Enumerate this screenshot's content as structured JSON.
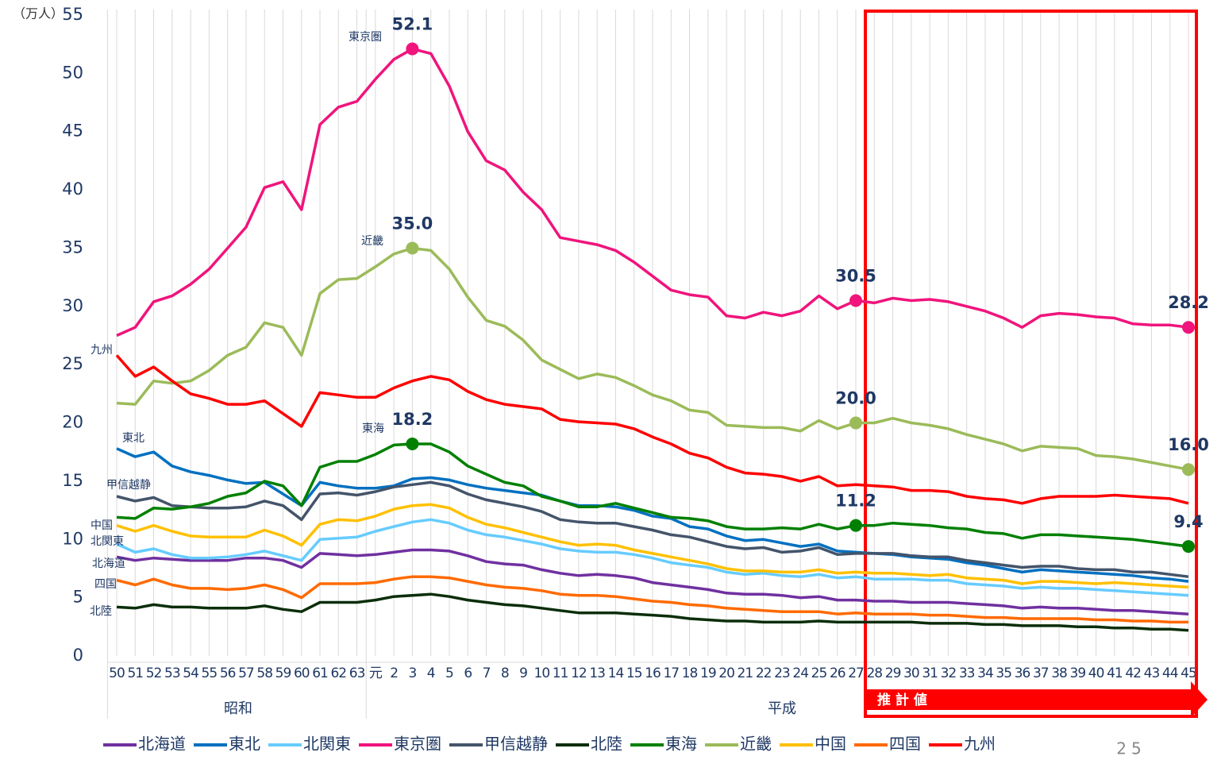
{
  "chart_data": {
    "type": "line",
    "y_axis_label": "（万人）",
    "categories": [
      "50",
      "51",
      "52",
      "53",
      "54",
      "55",
      "56",
      "57",
      "58",
      "59",
      "60",
      "61",
      "62",
      "63",
      "元",
      "2",
      "3",
      "4",
      "5",
      "6",
      "7",
      "8",
      "9",
      "10",
      "11",
      "12",
      "13",
      "14",
      "15",
      "16",
      "17",
      "18",
      "19",
      "20",
      "21",
      "22",
      "23",
      "24",
      "25",
      "26",
      "27",
      "28",
      "29",
      "30",
      "31",
      "32",
      "33",
      "34",
      "35",
      "36",
      "37",
      "38",
      "39",
      "40",
      "41",
      "42",
      "43",
      "44",
      "45"
    ],
    "groups": [
      "昭和",
      "平成"
    ],
    "forecast_label": "推 計 値",
    "ylim": [
      0,
      55
    ],
    "yticks": [
      0,
      5,
      10,
      15,
      20,
      25,
      30,
      35,
      40,
      45,
      50,
      55
    ],
    "grid": "x",
    "series": [
      {
        "name": "北海道",
        "color": "#7030a0",
        "values": [
          8.5,
          8.2,
          8.4,
          8.3,
          8.2,
          8.2,
          8.2,
          8.4,
          8.4,
          8.2,
          7.6,
          8.8,
          8.7,
          8.6,
          8.7,
          8.9,
          9.1,
          9.1,
          9.0,
          8.6,
          8.1,
          7.9,
          7.8,
          7.4,
          7.1,
          6.9,
          7.0,
          6.9,
          6.7,
          6.3,
          6.1,
          5.9,
          5.7,
          5.4,
          5.3,
          5.3,
          5.2,
          5.0,
          5.1,
          4.8,
          4.8,
          4.7,
          4.7,
          4.6,
          4.6,
          4.6,
          4.5,
          4.4,
          4.3,
          4.1,
          4.2,
          4.1,
          4.1,
          4.0,
          3.9,
          3.9,
          3.8,
          3.7,
          3.6
        ]
      },
      {
        "name": "東北",
        "color": "#0070c0",
        "values": [
          17.8,
          17.1,
          17.5,
          16.3,
          15.8,
          15.5,
          15.1,
          14.8,
          14.9,
          13.9,
          12.9,
          14.9,
          14.6,
          14.4,
          14.4,
          14.6,
          15.2,
          15.3,
          15.1,
          14.7,
          14.4,
          14.2,
          14.0,
          13.8,
          13.3,
          12.9,
          12.9,
          12.8,
          12.5,
          12.0,
          11.8,
          11.1,
          10.9,
          10.3,
          9.9,
          10.0,
          9.7,
          9.4,
          9.6,
          9.0,
          8.9,
          8.8,
          8.7,
          8.5,
          8.4,
          8.3,
          8.0,
          7.8,
          7.5,
          7.2,
          7.4,
          7.3,
          7.2,
          7.1,
          7.0,
          6.9,
          6.7,
          6.6,
          6.4
        ]
      },
      {
        "name": "北関東",
        "color": "#66ccff",
        "values": [
          9.6,
          8.9,
          9.2,
          8.7,
          8.4,
          8.4,
          8.5,
          8.7,
          9.0,
          8.6,
          8.2,
          10.0,
          10.1,
          10.2,
          10.7,
          11.1,
          11.5,
          11.7,
          11.4,
          10.8,
          10.4,
          10.2,
          9.9,
          9.6,
          9.2,
          9.0,
          8.9,
          8.9,
          8.7,
          8.4,
          8.0,
          7.8,
          7.6,
          7.2,
          7.0,
          7.1,
          6.9,
          6.8,
          7.0,
          6.7,
          6.8,
          6.6,
          6.6,
          6.6,
          6.5,
          6.5,
          6.2,
          6.1,
          6.0,
          5.8,
          5.9,
          5.8,
          5.8,
          5.7,
          5.6,
          5.5,
          5.4,
          5.3,
          5.2
        ]
      },
      {
        "name": "東京圏",
        "color": "#f0147c",
        "values": [
          27.5,
          28.2,
          30.4,
          30.9,
          31.9,
          33.2,
          35.0,
          36.8,
          40.2,
          40.7,
          38.3,
          45.6,
          47.1,
          47.6,
          49.5,
          51.2,
          52.1,
          51.7,
          48.9,
          45.0,
          42.5,
          41.7,
          39.8,
          38.3,
          35.9,
          35.6,
          35.3,
          34.8,
          33.8,
          32.6,
          31.4,
          31.0,
          30.8,
          29.2,
          29.0,
          29.5,
          29.2,
          29.6,
          30.9,
          29.8,
          30.5,
          30.3,
          30.7,
          30.5,
          30.6,
          30.4,
          30.0,
          29.6,
          29.0,
          28.2,
          29.2,
          29.4,
          29.3,
          29.1,
          29.0,
          28.5,
          28.4,
          28.4,
          28.2
        ],
        "value_labels": [
          null,
          null,
          null,
          null,
          null,
          null,
          null,
          null,
          null,
          null,
          null,
          null,
          null,
          null,
          null,
          null,
          "52.1",
          null,
          null,
          null,
          null,
          null,
          null,
          null,
          null,
          null,
          null,
          null,
          null,
          null,
          null,
          null,
          null,
          null,
          null,
          null,
          null,
          null,
          null,
          null,
          "30.5",
          null,
          null,
          null,
          null,
          null,
          null,
          null,
          null,
          null,
          null,
          null,
          null,
          null,
          null,
          null,
          null,
          null,
          "28.2"
        ]
      },
      {
        "name": "甲信越静",
        "color": "#44546a",
        "values": [
          13.7,
          13.3,
          13.6,
          12.9,
          12.8,
          12.7,
          12.7,
          12.8,
          13.3,
          12.9,
          11.7,
          13.9,
          14.0,
          13.8,
          14.1,
          14.5,
          14.7,
          14.9,
          14.6,
          13.9,
          13.4,
          13.1,
          12.8,
          12.4,
          11.7,
          11.5,
          11.4,
          11.4,
          11.1,
          10.8,
          10.4,
          10.2,
          9.8,
          9.4,
          9.2,
          9.3,
          8.9,
          9.0,
          9.3,
          8.7,
          8.8,
          8.8,
          8.8,
          8.6,
          8.5,
          8.5,
          8.2,
          8.0,
          7.8,
          7.6,
          7.7,
          7.7,
          7.5,
          7.4,
          7.4,
          7.2,
          7.2,
          7.0,
          6.8
        ]
      },
      {
        "name": "北陸",
        "color": "#0b2e0b",
        "values": [
          4.2,
          4.1,
          4.4,
          4.2,
          4.2,
          4.1,
          4.1,
          4.1,
          4.3,
          4.0,
          3.8,
          4.6,
          4.6,
          4.6,
          4.8,
          5.1,
          5.2,
          5.3,
          5.1,
          4.8,
          4.6,
          4.4,
          4.3,
          4.1,
          3.9,
          3.7,
          3.7,
          3.7,
          3.6,
          3.5,
          3.4,
          3.2,
          3.1,
          3.0,
          3.0,
          2.9,
          2.9,
          2.9,
          3.0,
          2.9,
          2.9,
          2.9,
          2.9,
          2.9,
          2.8,
          2.8,
          2.8,
          2.7,
          2.7,
          2.6,
          2.6,
          2.6,
          2.5,
          2.5,
          2.4,
          2.4,
          2.3,
          2.3,
          2.2
        ]
      },
      {
        "name": "東海",
        "color": "#008000",
        "values": [
          11.9,
          11.8,
          12.7,
          12.6,
          12.8,
          13.1,
          13.7,
          14.0,
          15.0,
          14.6,
          12.9,
          16.2,
          16.7,
          16.7,
          17.3,
          18.1,
          18.2,
          18.2,
          17.5,
          16.3,
          15.6,
          14.9,
          14.6,
          13.7,
          13.3,
          12.8,
          12.8,
          13.1,
          12.7,
          12.3,
          11.9,
          11.8,
          11.6,
          11.1,
          10.9,
          10.9,
          11.0,
          10.9,
          11.3,
          10.9,
          11.2,
          11.2,
          11.4,
          11.3,
          11.2,
          11.0,
          10.9,
          10.6,
          10.5,
          10.1,
          10.4,
          10.4,
          10.3,
          10.2,
          10.1,
          10.0,
          9.8,
          9.6,
          9.4
        ],
        "value_labels": [
          null,
          null,
          null,
          null,
          null,
          null,
          null,
          null,
          null,
          null,
          null,
          null,
          null,
          null,
          null,
          null,
          "18.2",
          null,
          null,
          null,
          null,
          null,
          null,
          null,
          null,
          null,
          null,
          null,
          null,
          null,
          null,
          null,
          null,
          null,
          null,
          null,
          null,
          null,
          null,
          null,
          "11.2",
          null,
          null,
          null,
          null,
          null,
          null,
          null,
          null,
          null,
          null,
          null,
          null,
          null,
          null,
          null,
          null,
          null,
          "9.4"
        ]
      },
      {
        "name": "近畿",
        "color": "#9bbb59",
        "values": [
          21.7,
          21.6,
          23.6,
          23.4,
          23.6,
          24.5,
          25.8,
          26.5,
          28.6,
          28.2,
          25.8,
          31.1,
          32.3,
          32.4,
          33.4,
          34.5,
          35.0,
          34.8,
          33.2,
          30.8,
          28.8,
          28.3,
          27.1,
          25.4,
          24.6,
          23.8,
          24.2,
          23.9,
          23.2,
          22.4,
          21.9,
          21.1,
          20.9,
          19.8,
          19.7,
          19.6,
          19.6,
          19.3,
          20.2,
          19.5,
          20.0,
          20.0,
          20.4,
          20.0,
          19.8,
          19.5,
          19.0,
          18.6,
          18.2,
          17.6,
          18.0,
          17.9,
          17.8,
          17.2,
          17.1,
          16.9,
          16.6,
          16.3,
          16.0
        ],
        "value_labels": [
          null,
          null,
          null,
          null,
          null,
          null,
          null,
          null,
          null,
          null,
          null,
          null,
          null,
          null,
          null,
          null,
          "35.0",
          null,
          null,
          null,
          null,
          null,
          null,
          null,
          null,
          null,
          null,
          null,
          null,
          null,
          null,
          null,
          null,
          null,
          null,
          null,
          null,
          null,
          null,
          null,
          "20.0",
          null,
          null,
          null,
          null,
          null,
          null,
          null,
          null,
          null,
          null,
          null,
          null,
          null,
          null,
          null,
          null,
          null,
          "16.0"
        ]
      },
      {
        "name": "中国",
        "color": "#ffc000",
        "values": [
          11.2,
          10.7,
          11.2,
          10.7,
          10.3,
          10.2,
          10.2,
          10.2,
          10.8,
          10.3,
          9.5,
          11.3,
          11.7,
          11.6,
          12.0,
          12.6,
          12.9,
          13.0,
          12.7,
          11.9,
          11.3,
          11.0,
          10.6,
          10.2,
          9.8,
          9.5,
          9.6,
          9.5,
          9.1,
          8.8,
          8.5,
          8.2,
          7.9,
          7.5,
          7.3,
          7.3,
          7.2,
          7.2,
          7.4,
          7.1,
          7.2,
          7.1,
          7.1,
          7.0,
          6.9,
          7.0,
          6.7,
          6.6,
          6.5,
          6.2,
          6.4,
          6.4,
          6.3,
          6.2,
          6.3,
          6.2,
          6.1,
          6.0,
          5.9
        ]
      },
      {
        "name": "四国",
        "color": "#ff6a00",
        "values": [
          6.5,
          6.1,
          6.6,
          6.1,
          5.8,
          5.8,
          5.7,
          5.8,
          6.1,
          5.7,
          5.0,
          6.2,
          6.2,
          6.2,
          6.3,
          6.6,
          6.8,
          6.8,
          6.7,
          6.4,
          6.1,
          5.9,
          5.8,
          5.6,
          5.3,
          5.2,
          5.2,
          5.1,
          4.9,
          4.7,
          4.6,
          4.4,
          4.3,
          4.1,
          4.0,
          3.9,
          3.8,
          3.8,
          3.8,
          3.6,
          3.7,
          3.6,
          3.6,
          3.6,
          3.5,
          3.5,
          3.4,
          3.3,
          3.3,
          3.2,
          3.2,
          3.2,
          3.2,
          3.1,
          3.1,
          3.0,
          3.0,
          2.9,
          2.9
        ]
      },
      {
        "name": "九州",
        "color": "#ff0000",
        "values": [
          25.8,
          24.0,
          24.8,
          23.6,
          22.5,
          22.1,
          21.6,
          21.6,
          21.9,
          20.8,
          19.7,
          22.6,
          22.4,
          22.2,
          22.2,
          23.0,
          23.6,
          24.0,
          23.7,
          22.7,
          22.0,
          21.6,
          21.4,
          21.2,
          20.3,
          20.1,
          20.0,
          19.9,
          19.5,
          18.8,
          18.2,
          17.4,
          17.0,
          16.2,
          15.7,
          15.6,
          15.4,
          15.0,
          15.4,
          14.6,
          14.7,
          14.6,
          14.5,
          14.2,
          14.2,
          14.1,
          13.7,
          13.5,
          13.4,
          13.1,
          13.5,
          13.7,
          13.7,
          13.7,
          13.8,
          13.7,
          13.6,
          13.5,
          13.1
        ]
      }
    ]
  },
  "page_number": "25"
}
